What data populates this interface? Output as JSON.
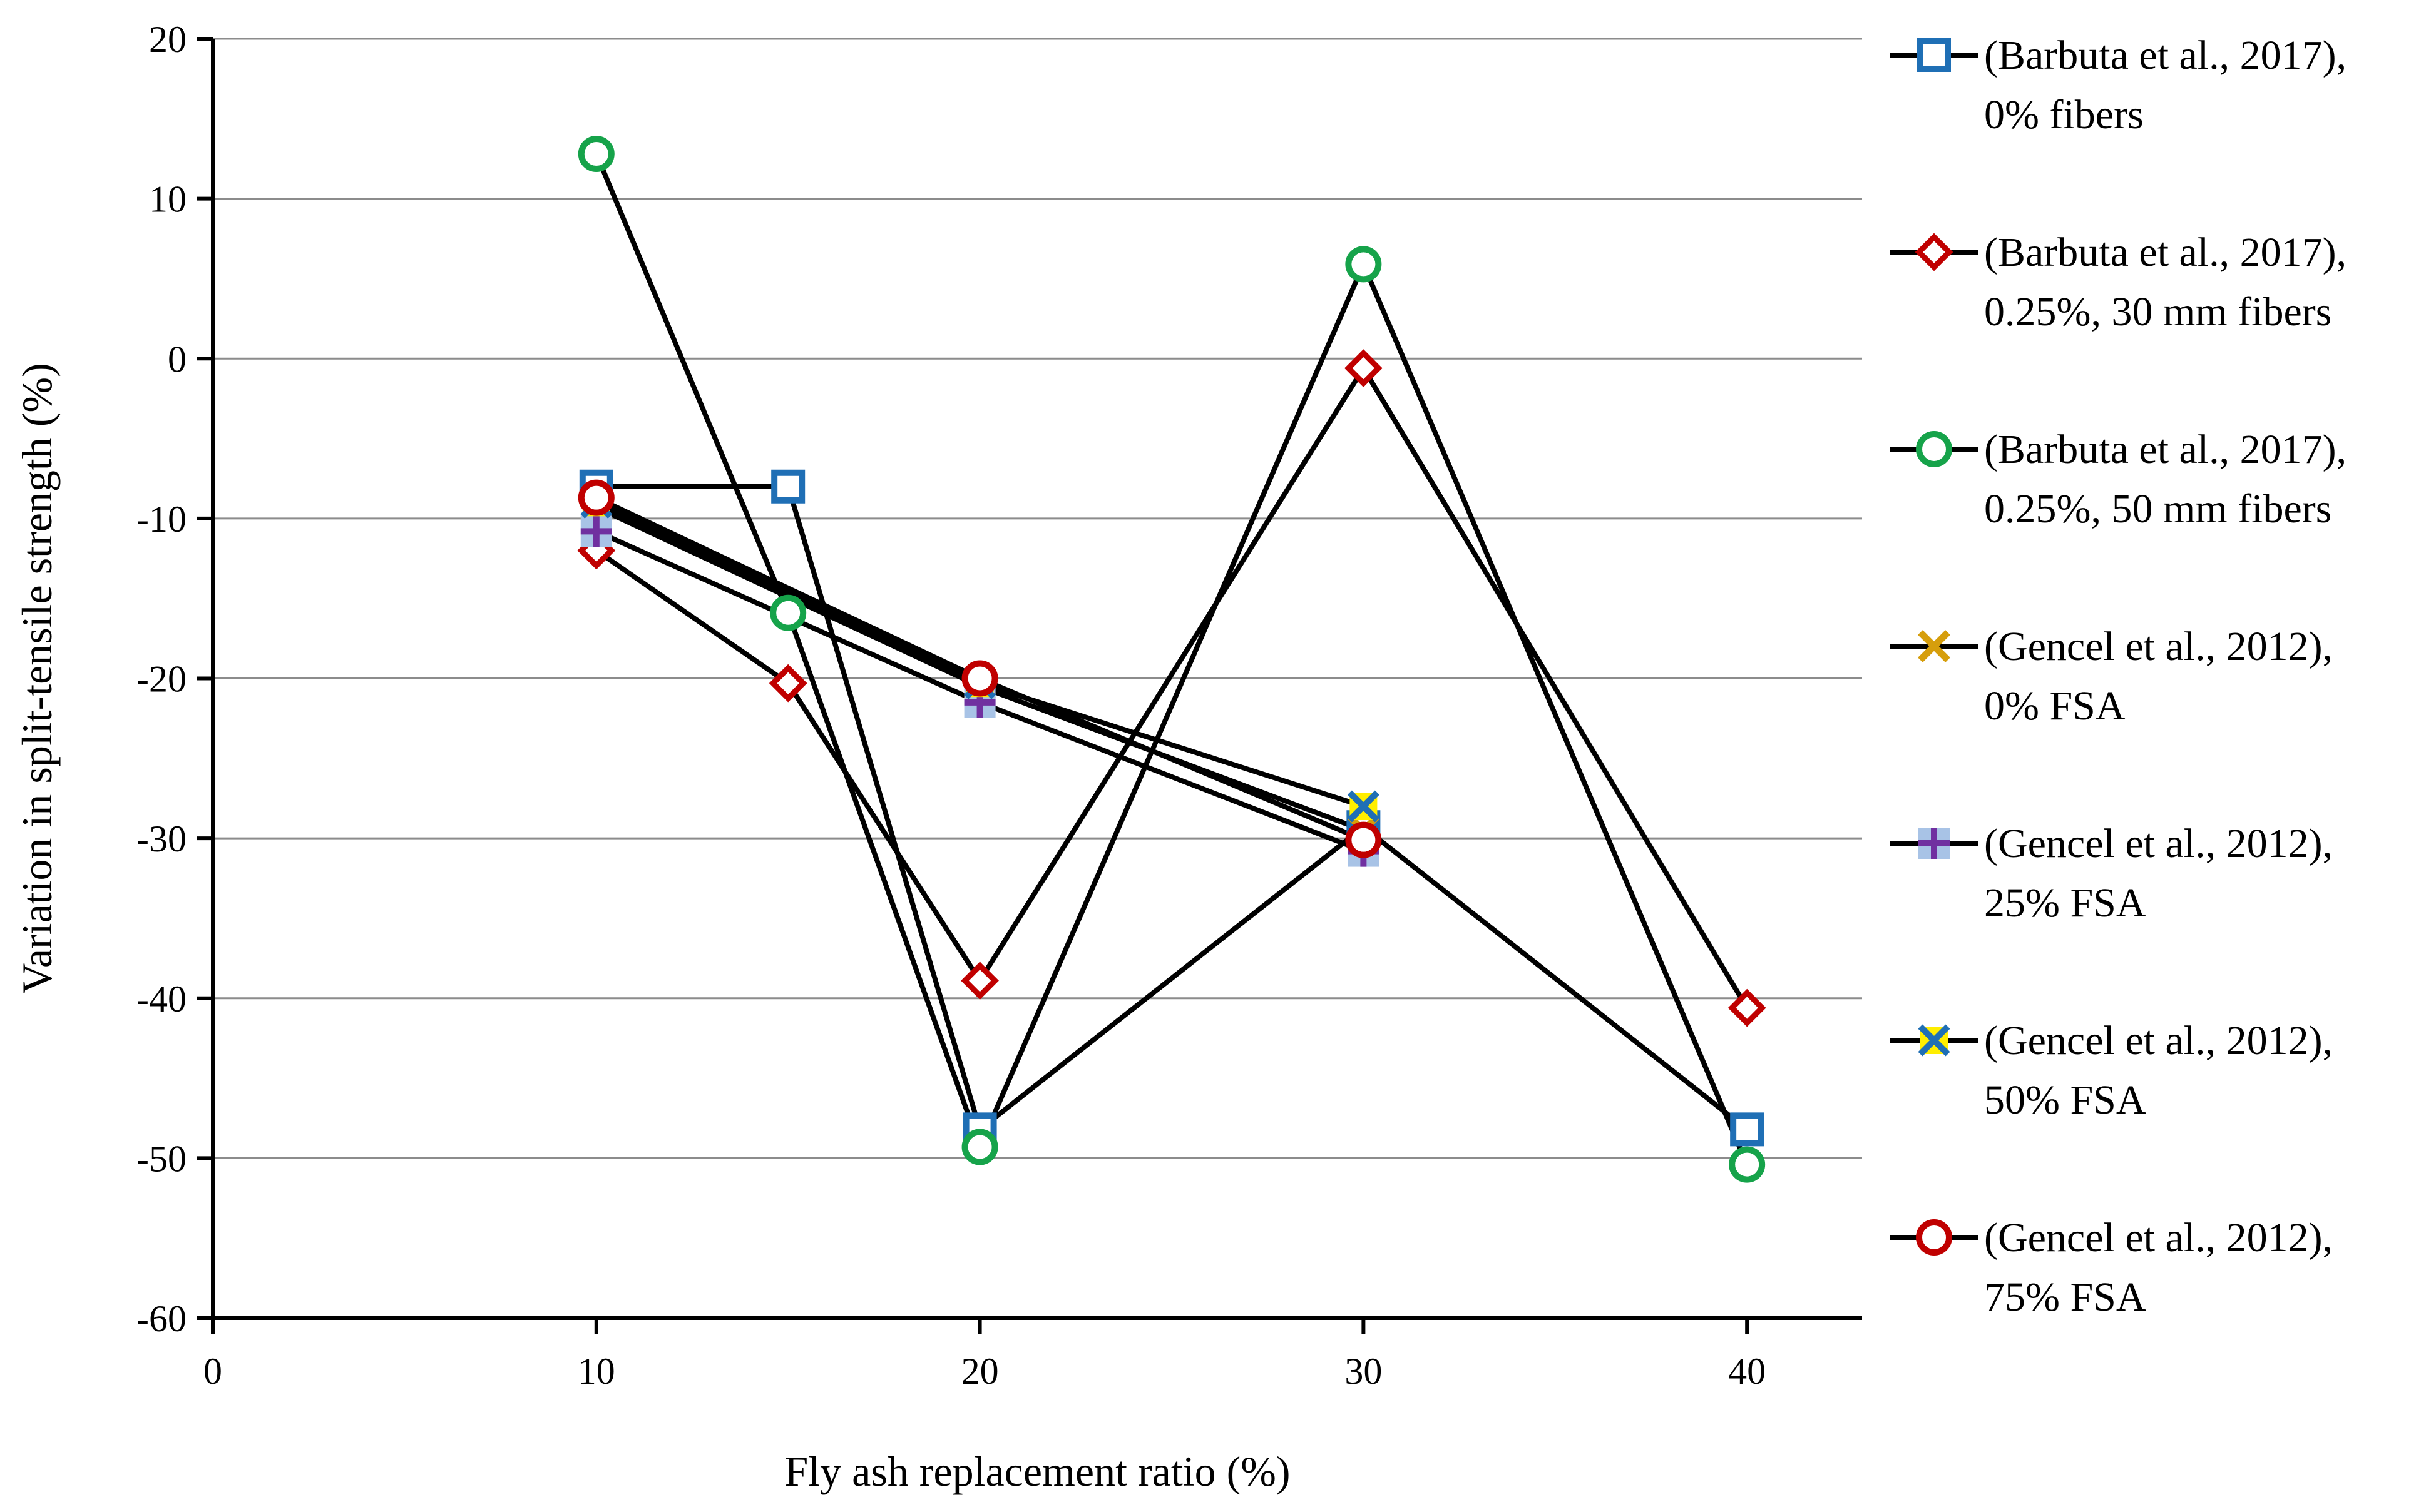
{
  "chart_data": {
    "type": "line",
    "title": "",
    "xlabel": "Fly ash replacement ratio (%)",
    "ylabel": "Variation in split-tensile strength (%)",
    "xlim": [
      0,
      43
    ],
    "ylim": [
      -60,
      20
    ],
    "x_ticks": [
      0,
      10,
      20,
      30,
      40
    ],
    "x_tick_labels": [
      "0",
      "10",
      "20",
      "30",
      "40"
    ],
    "y_ticks": [
      20,
      10,
      0,
      -10,
      -20,
      -30,
      -40,
      -50,
      -60
    ],
    "y_tick_labels": [
      "20",
      "10",
      "0",
      "-10",
      "-20",
      "-30",
      "-40",
      "-50",
      "-60"
    ],
    "grid": "horizontal",
    "legend_position": "right",
    "series": [
      {
        "name": "(Barbuta et al., 2017), 0% fibers",
        "legend_lines": [
          "(Barbuta et al., 2017),",
          "0% fibers"
        ],
        "marker": "square",
        "color": "#1f6fb5",
        "fill": "#ffffff",
        "x": [
          10,
          15,
          20,
          30,
          40
        ],
        "y": [
          -8,
          -8,
          -48.2,
          -29.3,
          -48.2
        ]
      },
      {
        "name": "(Barbuta et al., 2017), 0.25%, 30 mm fibers",
        "legend_lines": [
          "(Barbuta et al., 2017),",
          "0.25%, 30 mm fibers"
        ],
        "marker": "diamond",
        "color": "#c00000",
        "fill": "#ffffff",
        "x": [
          10,
          15,
          20,
          30,
          40
        ],
        "y": [
          -12,
          -20.3,
          -38.9,
          -0.6,
          -40.6
        ]
      },
      {
        "name": "(Barbuta et al., 2017), 0.25%, 50 mm fibers",
        "legend_lines": [
          "(Barbuta et al., 2017),",
          "0.25%, 50 mm fibers"
        ],
        "marker": "circle",
        "color": "#16a34a",
        "fill": "#ffffff",
        "x": [
          10,
          15,
          20,
          30,
          40
        ],
        "y": [
          12.8,
          -15.9,
          -49.3,
          5.9,
          -50.4
        ]
      },
      {
        "name": "(Gencel et al., 2012), 0% FSA",
        "legend_lines": [
          "(Gencel et al., 2012),",
          "0% FSA"
        ],
        "marker": "x",
        "color": "#d69e0c",
        "fill": "none",
        "x": [
          10,
          20,
          30
        ],
        "y": [
          -9.3,
          -20.5,
          -29.5
        ]
      },
      {
        "name": "(Gencel et al., 2012), 25% FSA",
        "legend_lines": [
          "(Gencel et al., 2012),",
          "25% FSA"
        ],
        "marker": "plus-on-square",
        "color": "#7030a0",
        "fill": "#a8c3e6",
        "x": [
          10,
          20,
          30
        ],
        "y": [
          -10.8,
          -21.5,
          -30.8
        ]
      },
      {
        "name": "(Gencel et al., 2012), 50% FSA",
        "legend_lines": [
          "(Gencel et al., 2012),",
          "50% FSA"
        ],
        "marker": "x-on-yellow",
        "color": "#1f6fb5",
        "fill": "#ffee00",
        "x": [
          10,
          20,
          30
        ],
        "y": [
          -9,
          -20.3,
          -28
        ]
      },
      {
        "name": "(Gencel et al., 2012), 75% FSA",
        "legend_lines": [
          "(Gencel et al., 2012),",
          "75% FSA"
        ],
        "marker": "circle",
        "color": "#c00000",
        "fill": "#ffffff",
        "x": [
          10,
          20,
          30
        ],
        "y": [
          -8.7,
          -20,
          -30.1
        ]
      }
    ]
  }
}
